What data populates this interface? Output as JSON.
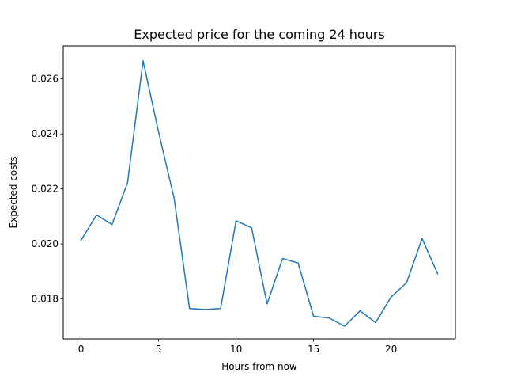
{
  "chart_data": {
    "type": "line",
    "title": "Expected price for the coming 24 hours",
    "xlabel": "Hours from now",
    "ylabel": "Expected costs",
    "xlim": [
      -1.15,
      24.15
    ],
    "ylim": [
      0.01655,
      0.0272
    ],
    "xticks": [
      0,
      5,
      10,
      15,
      20
    ],
    "xtick_labels": [
      "0",
      "5",
      "10",
      "15",
      "20"
    ],
    "yticks": [
      0.018,
      0.02,
      0.022,
      0.024,
      0.026
    ],
    "ytick_labels": [
      "0.018",
      "0.020",
      "0.022",
      "0.024",
      "0.026"
    ],
    "grid": false,
    "series": [
      {
        "color": "#1f77b4",
        "x": [
          0,
          1,
          2,
          3,
          4,
          5,
          6,
          7,
          8,
          9,
          10,
          11,
          12,
          13,
          14,
          15,
          16,
          17,
          18,
          19,
          20,
          21,
          22,
          23
        ],
        "values": [
          0.02014,
          0.02105,
          0.02071,
          0.02223,
          0.02666,
          0.02407,
          0.02167,
          0.01765,
          0.01762,
          0.01765,
          0.02084,
          0.02059,
          0.01782,
          0.01947,
          0.01931,
          0.01737,
          0.01731,
          0.01701,
          0.01757,
          0.01714,
          0.01807,
          0.01859,
          0.0202,
          0.01892
        ]
      }
    ]
  }
}
